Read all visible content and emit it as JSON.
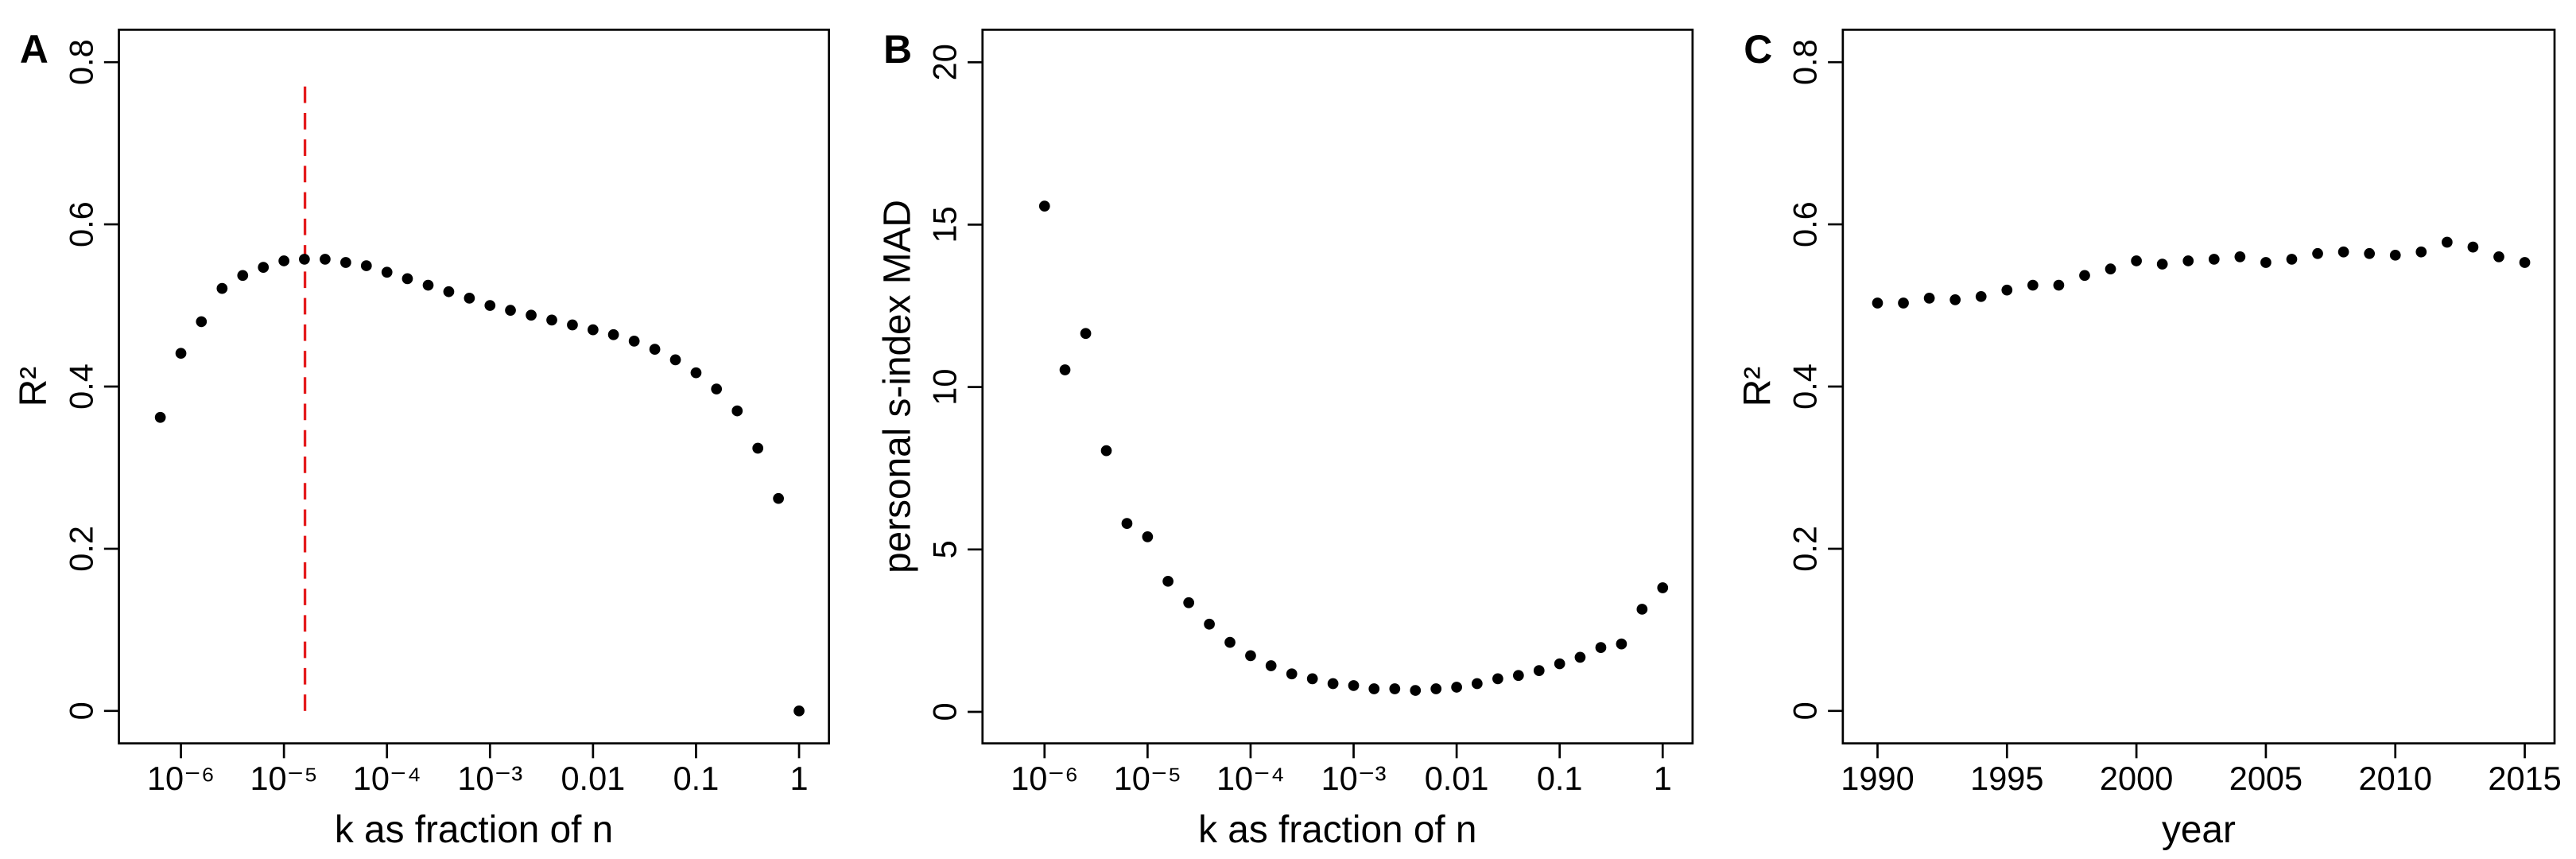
{
  "chart_data": [
    {
      "type": "scatter",
      "panel_label": "A",
      "xlabel": "k as fraction of n",
      "ylabel": "R²",
      "xscale": "log",
      "color": "#000000",
      "x": [
        6.31e-07,
        1e-06,
        1.58e-06,
        2.51e-06,
        3.98e-06,
        6.31e-06,
        1e-05,
        1.58e-05,
        2.51e-05,
        3.98e-05,
        6.31e-05,
        0.0001,
        0.000158,
        0.000251,
        0.000398,
        0.000631,
        0.001,
        0.00158,
        0.00251,
        0.00398,
        0.00631,
        0.01,
        0.0158,
        0.0251,
        0.0398,
        0.0631,
        0.1,
        0.158,
        0.251,
        0.398,
        0.631,
        1
      ],
      "values": [
        0.362,
        0.441,
        0.48,
        0.521,
        0.537,
        0.547,
        0.555,
        0.557,
        0.557,
        0.553,
        0.549,
        0.541,
        0.533,
        0.525,
        0.517,
        0.509,
        0.5,
        0.494,
        0.488,
        0.482,
        0.476,
        0.47,
        0.464,
        0.456,
        0.446,
        0.433,
        0.417,
        0.397,
        0.37,
        0.324,
        0.262,
        0
      ],
      "xlim": [
        2.5e-07,
        1.95
      ],
      "ylim": [
        -0.04,
        0.84
      ],
      "xticks": [
        {
          "value": 1e-06,
          "label": "10⁻⁶"
        },
        {
          "value": 1e-05,
          "label": "10⁻⁵"
        },
        {
          "value": 0.0001,
          "label": "10⁻⁴"
        },
        {
          "value": 0.001,
          "label": "10⁻³"
        },
        0.01,
        0.1,
        1
      ],
      "yticks": [
        0,
        0.2,
        0.4,
        0.6,
        0.8
      ],
      "reference_line": {
        "x": 1.6e-05,
        "ymin": 0,
        "ymax": 0.78,
        "color": "#e41a1c"
      }
    },
    {
      "type": "scatter",
      "panel_label": "B",
      "xlabel": "k as fraction of n",
      "ylabel": "personal s-index MAD",
      "xscale": "log",
      "color": "#000000",
      "x": [
        1e-06,
        1.58e-06,
        2.51e-06,
        3.98e-06,
        6.31e-06,
        1e-05,
        1.58e-05,
        2.51e-05,
        3.98e-05,
        6.31e-05,
        0.0001,
        0.000158,
        0.000251,
        0.000398,
        0.000631,
        0.001,
        0.00158,
        0.00251,
        0.00398,
        0.00631,
        0.01,
        0.0158,
        0.0251,
        0.0398,
        0.0631,
        0.1,
        0.158,
        0.251,
        0.398,
        0.631,
        1
      ],
      "values": [
        15.57,
        10.53,
        11.65,
        8.04,
        5.8,
        5.39,
        4.02,
        3.36,
        2.7,
        2.14,
        1.73,
        1.42,
        1.17,
        1.02,
        0.87,
        0.81,
        0.71,
        0.71,
        0.66,
        0.71,
        0.76,
        0.87,
        1.02,
        1.12,
        1.27,
        1.48,
        1.68,
        1.98,
        2.09,
        3.16,
        3.82
      ],
      "xlim": [
        2.5e-07,
        1.95
      ],
      "ylim": [
        -0.97,
        21.0
      ],
      "xticks": [
        {
          "value": 1e-06,
          "label": "10⁻⁶"
        },
        {
          "value": 1e-05,
          "label": "10⁻⁵"
        },
        {
          "value": 0.0001,
          "label": "10⁻⁴"
        },
        {
          "value": 0.001,
          "label": "10⁻³"
        },
        0.01,
        0.1,
        1
      ],
      "yticks": [
        0,
        5,
        10,
        15,
        20
      ]
    },
    {
      "type": "scatter",
      "panel_label": "C",
      "xlabel": "year",
      "ylabel": "R²",
      "xscale": "linear",
      "color": "#000000",
      "x": [
        1990,
        1991,
        1992,
        1993,
        1994,
        1995,
        1996,
        1997,
        1998,
        1999,
        2000,
        2001,
        2002,
        2003,
        2004,
        2005,
        2006,
        2007,
        2008,
        2009,
        2010,
        2011,
        2012,
        2013,
        2014,
        2015
      ],
      "values": [
        0.503,
        0.503,
        0.509,
        0.507,
        0.511,
        0.519,
        0.525,
        0.525,
        0.537,
        0.545,
        0.555,
        0.551,
        0.555,
        0.557,
        0.56,
        0.553,
        0.557,
        0.564,
        0.566,
        0.564,
        0.562,
        0.566,
        0.578,
        0.572,
        0.56,
        0.553
      ],
      "xlim": [
        1988.66,
        2016.15
      ],
      "ylim": [
        -0.04,
        0.84
      ],
      "xticks": [
        1990,
        1995,
        2000,
        2005,
        2010,
        2015
      ],
      "yticks": [
        0,
        0.2,
        0.4,
        0.6,
        0.8
      ]
    }
  ]
}
